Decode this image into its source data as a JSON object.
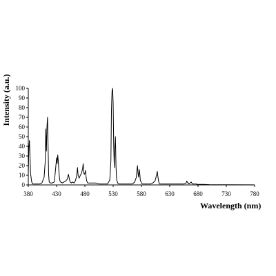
{
  "chart_data": {
    "type": "line",
    "title": "",
    "xlabel": "Wavelength (nm)",
    "ylabel": "Intensity (a.u.)",
    "xlim": [
      380,
      780
    ],
    "ylim": [
      0,
      100
    ],
    "x_ticks": [
      380,
      430,
      480,
      530,
      580,
      630,
      680,
      730,
      780
    ],
    "y_ticks": [
      0,
      10,
      20,
      30,
      40,
      50,
      60,
      70,
      80,
      90,
      100
    ],
    "grid": false,
    "legend": "none",
    "line_color": "#000000",
    "series": [
      {
        "x": [
          380,
          381,
          382,
          383,
          384,
          386,
          388,
          392,
          396,
          400,
          404,
          408,
          410,
          411,
          412,
          413,
          414,
          415,
          416,
          417,
          419,
          422,
          426,
          428,
          430,
          431,
          432,
          433,
          434,
          435,
          436,
          437,
          440,
          443,
          446,
          449,
          451,
          452,
          453,
          454,
          456,
          458,
          461,
          463,
          465,
          466,
          467,
          468,
          470,
          472,
          474,
          476,
          477,
          478,
          479,
          480,
          481,
          482,
          483,
          484,
          485,
          486,
          487,
          488,
          489,
          490,
          491,
          493,
          496,
          500,
          505,
          510,
          515,
          520,
          524,
          526,
          527,
          528,
          529,
          530,
          531,
          532,
          533,
          534,
          535,
          536,
          538,
          540,
          544,
          548,
          552,
          556,
          560,
          564,
          568,
          571,
          572,
          573,
          574,
          575,
          576,
          577,
          578,
          580,
          582,
          584,
          588,
          592,
          596,
          600,
          604,
          607,
          608,
          609,
          610,
          611,
          612,
          614,
          617,
          620,
          625,
          630,
          635,
          640,
          645,
          650,
          655,
          659,
          660,
          661,
          662,
          663,
          664,
          666,
          668,
          669,
          670,
          671,
          673,
          676,
          680,
          690,
          700,
          730,
          780
        ],
        "y": [
          12,
          38,
          46,
          30,
          12,
          3,
          1,
          1,
          1,
          1,
          2,
          8,
          25,
          58,
          35,
          60,
          70,
          40,
          10,
          3,
          2,
          2,
          3,
          15,
          28,
          22,
          31,
          25,
          15,
          8,
          4,
          3,
          2,
          3,
          4,
          6,
          11,
          8,
          5,
          3,
          2,
          3,
          2,
          4,
          8,
          12,
          18,
          10,
          7,
          10,
          12,
          17,
          22,
          13,
          11,
          12,
          15,
          9,
          5,
          3,
          2,
          2,
          2,
          2,
          2,
          2,
          2,
          2,
          2,
          2,
          1,
          1,
          1,
          1,
          5,
          25,
          78,
          97,
          100,
          85,
          40,
          18,
          38,
          50,
          20,
          6,
          2,
          1,
          1,
          1,
          1,
          1,
          1,
          1,
          3,
          8,
          15,
          20,
          12,
          8,
          16,
          12,
          5,
          2,
          1,
          1,
          1,
          1,
          1,
          2,
          4,
          11,
          14,
          9,
          5,
          2,
          1,
          1,
          1,
          1,
          1,
          1,
          1,
          1,
          1,
          1,
          1,
          2,
          4,
          3,
          2,
          2,
          1,
          2,
          3,
          2,
          1,
          1,
          1,
          1,
          0.5,
          0.5,
          0.3,
          0.2,
          0.1
        ]
      }
    ]
  }
}
